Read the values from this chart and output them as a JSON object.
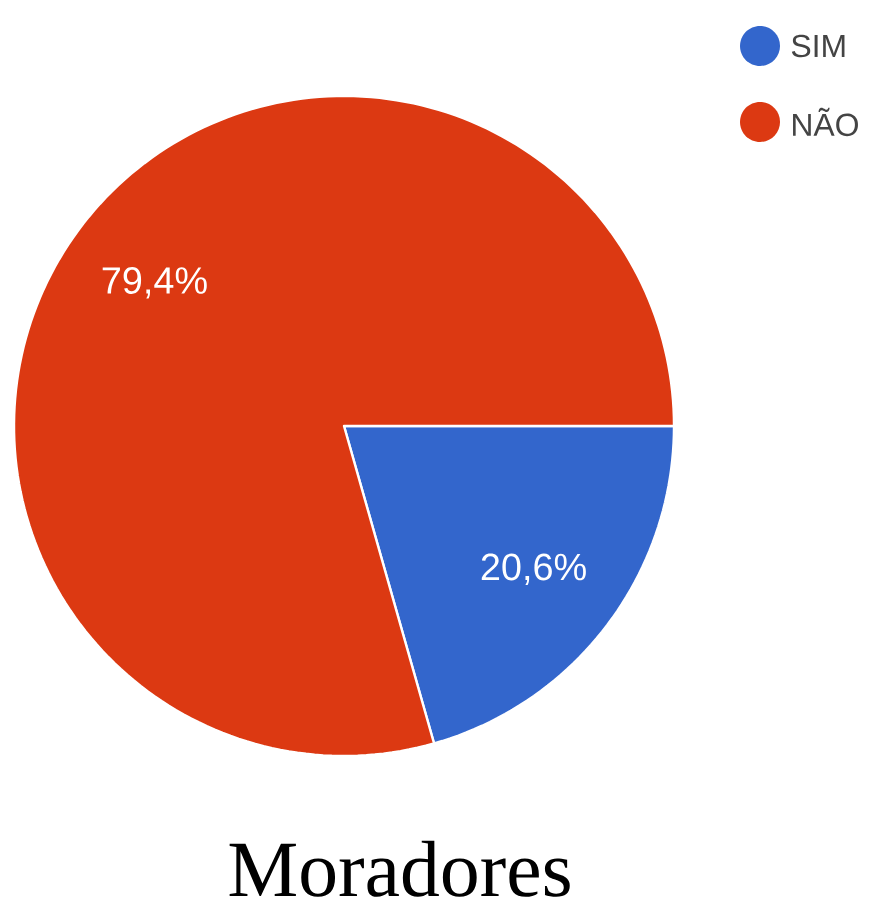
{
  "chart_data": {
    "type": "pie",
    "title": "Moradores",
    "categories": [
      "SIM",
      "NÃO"
    ],
    "values": [
      20.6,
      79.4
    ],
    "colors": [
      "#3366cc",
      "#dc3912"
    ],
    "value_labels": [
      "20,6%",
      "79,4%"
    ],
    "legend": "top right"
  }
}
